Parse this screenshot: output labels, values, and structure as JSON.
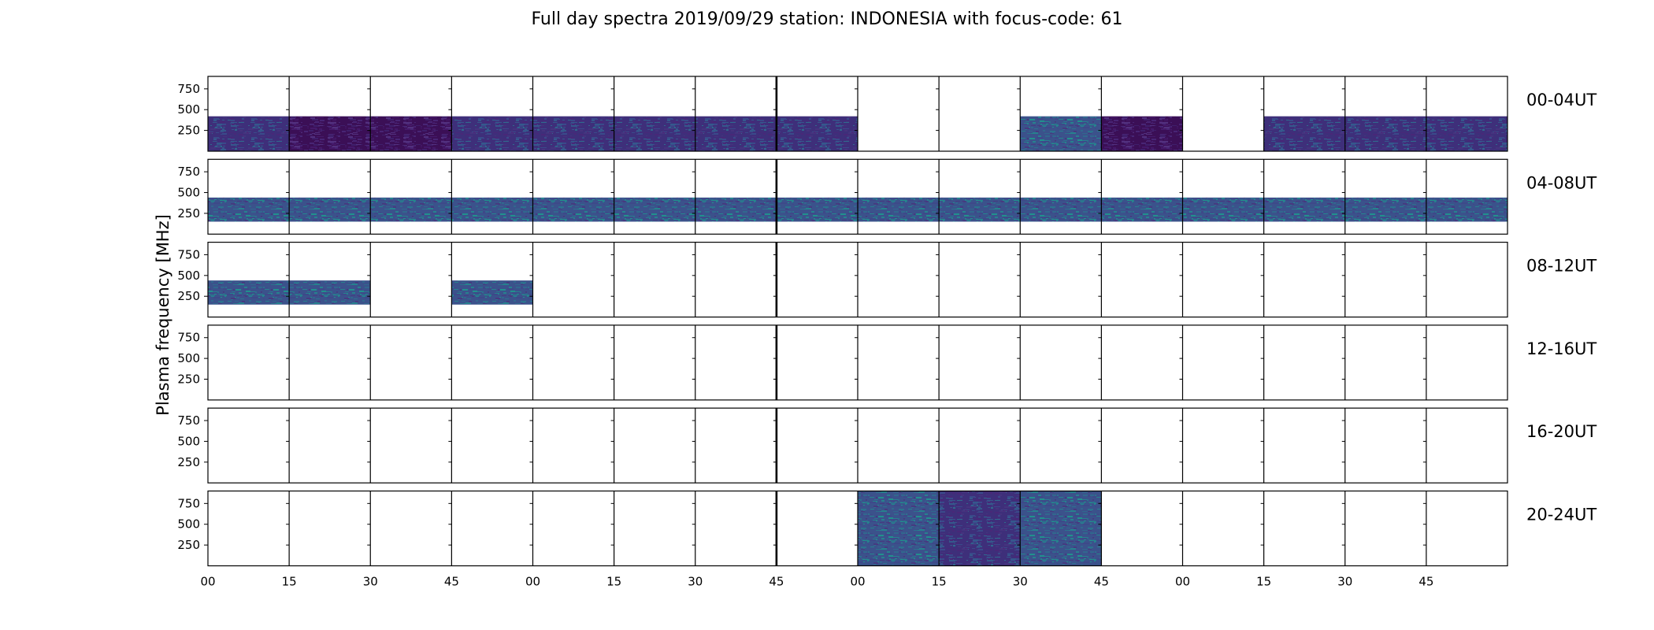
{
  "chart_data": {
    "type": "heatmap",
    "title": "Full day spectra 2019/09/29 station: INDONESIA with focus-code: 61",
    "ylabel": "Plasma frequency [MHz]",
    "ylim": [
      0,
      900
    ],
    "yticks": [
      "750",
      "500",
      "250"
    ],
    "ytick_values": [
      750,
      500,
      250
    ],
    "xtick_labels": [
      "00",
      "15",
      "30",
      "45",
      "00",
      "15",
      "30",
      "45",
      "00",
      "15",
      "30",
      "45",
      "00",
      "15",
      "30",
      "45"
    ],
    "colormap": "viridis",
    "segments_per_row": 16,
    "rows": [
      {
        "label": "00-04UT",
        "blocks": [
          {
            "seg": 0,
            "fmin": 0,
            "fmax": 420,
            "shade": "mid"
          },
          {
            "seg": 1,
            "fmin": 0,
            "fmax": 420,
            "shade": "dark"
          },
          {
            "seg": 2,
            "fmin": 0,
            "fmax": 420,
            "shade": "dark"
          },
          {
            "seg": 3,
            "fmin": 0,
            "fmax": 420,
            "shade": "mid"
          },
          {
            "seg": 4,
            "fmin": 0,
            "fmax": 420,
            "shade": "mid"
          },
          {
            "seg": 5,
            "fmin": 0,
            "fmax": 420,
            "shade": "mid"
          },
          {
            "seg": 6,
            "fmin": 0,
            "fmax": 420,
            "shade": "mid"
          },
          {
            "seg": 7,
            "fmin": 0,
            "fmax": 420,
            "shade": "mid"
          },
          {
            "seg": 10,
            "fmin": 0,
            "fmax": 420,
            "shade": "bright"
          },
          {
            "seg": 11,
            "fmin": 0,
            "fmax": 420,
            "shade": "dark"
          },
          {
            "seg": 13,
            "fmin": 0,
            "fmax": 420,
            "shade": "mid"
          },
          {
            "seg": 14,
            "fmin": 0,
            "fmax": 420,
            "shade": "mid"
          },
          {
            "seg": 15,
            "fmin": 0,
            "fmax": 420,
            "shade": "mid"
          }
        ]
      },
      {
        "label": "04-08UT",
        "blocks": [
          {
            "seg": 0,
            "fmin": 150,
            "fmax": 440,
            "shade": "bright"
          },
          {
            "seg": 1,
            "fmin": 150,
            "fmax": 440,
            "shade": "bright"
          },
          {
            "seg": 2,
            "fmin": 150,
            "fmax": 440,
            "shade": "bright"
          },
          {
            "seg": 3,
            "fmin": 150,
            "fmax": 440,
            "shade": "bright"
          },
          {
            "seg": 4,
            "fmin": 150,
            "fmax": 440,
            "shade": "bright"
          },
          {
            "seg": 5,
            "fmin": 150,
            "fmax": 440,
            "shade": "bright"
          },
          {
            "seg": 6,
            "fmin": 150,
            "fmax": 440,
            "shade": "bright"
          },
          {
            "seg": 7,
            "fmin": 150,
            "fmax": 440,
            "shade": "bright"
          },
          {
            "seg": 8,
            "fmin": 150,
            "fmax": 440,
            "shade": "bright"
          },
          {
            "seg": 9,
            "fmin": 150,
            "fmax": 440,
            "shade": "bright"
          },
          {
            "seg": 10,
            "fmin": 150,
            "fmax": 440,
            "shade": "bright"
          },
          {
            "seg": 11,
            "fmin": 150,
            "fmax": 440,
            "shade": "bright"
          },
          {
            "seg": 12,
            "fmin": 150,
            "fmax": 440,
            "shade": "bright"
          },
          {
            "seg": 13,
            "fmin": 150,
            "fmax": 440,
            "shade": "bright"
          },
          {
            "seg": 14,
            "fmin": 150,
            "fmax": 440,
            "shade": "bright"
          },
          {
            "seg": 15,
            "fmin": 150,
            "fmax": 440,
            "shade": "bright"
          }
        ]
      },
      {
        "label": "08-12UT",
        "blocks": [
          {
            "seg": 0,
            "fmin": 150,
            "fmax": 440,
            "shade": "bright"
          },
          {
            "seg": 1,
            "fmin": 150,
            "fmax": 440,
            "shade": "bright"
          },
          {
            "seg": 3,
            "fmin": 150,
            "fmax": 440,
            "shade": "bright"
          }
        ]
      },
      {
        "label": "12-16UT",
        "blocks": []
      },
      {
        "label": "16-20UT",
        "blocks": []
      },
      {
        "label": "20-24UT",
        "blocks": [
          {
            "seg": 8,
            "fmin": 0,
            "fmax": 900,
            "shade": "bright"
          },
          {
            "seg": 9,
            "fmin": 0,
            "fmax": 900,
            "shade": "mid"
          },
          {
            "seg": 10,
            "fmin": 0,
            "fmax": 900,
            "shade": "bright"
          }
        ]
      }
    ],
    "shades": {
      "dark": [
        "#3b0f56",
        "#45196a",
        "#482575",
        "#3f1f6b",
        "#52307e"
      ],
      "mid": [
        "#3e2f7a",
        "#46337e",
        "#3a4a8a",
        "#2f6a8e",
        "#482878",
        "#35588c"
      ],
      "bright": [
        "#3b528b",
        "#2c728e",
        "#31688e",
        "#21908d",
        "#3e4989",
        "#463a80",
        "#26828e"
      ]
    }
  }
}
